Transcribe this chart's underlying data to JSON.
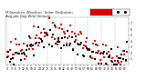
{
  "title": "Milwaukee Weather  Solar Radiation",
  "subtitle": "Avg per Day W/m²/minute",
  "background_color": "#ffffff",
  "plot_bg_color": "#ffffff",
  "grid_color": "#bbbbbb",
  "red_color": "#dd0000",
  "black_color": "#000000",
  "legend_red_color": "#dd0000",
  "legend_black_color": "#000000",
  "ylim": [
    0,
    8
  ],
  "n_points": 90,
  "seed": 42,
  "title_fontsize": 3.0,
  "tick_fontsize": 2.2,
  "dot_size": 0.8
}
